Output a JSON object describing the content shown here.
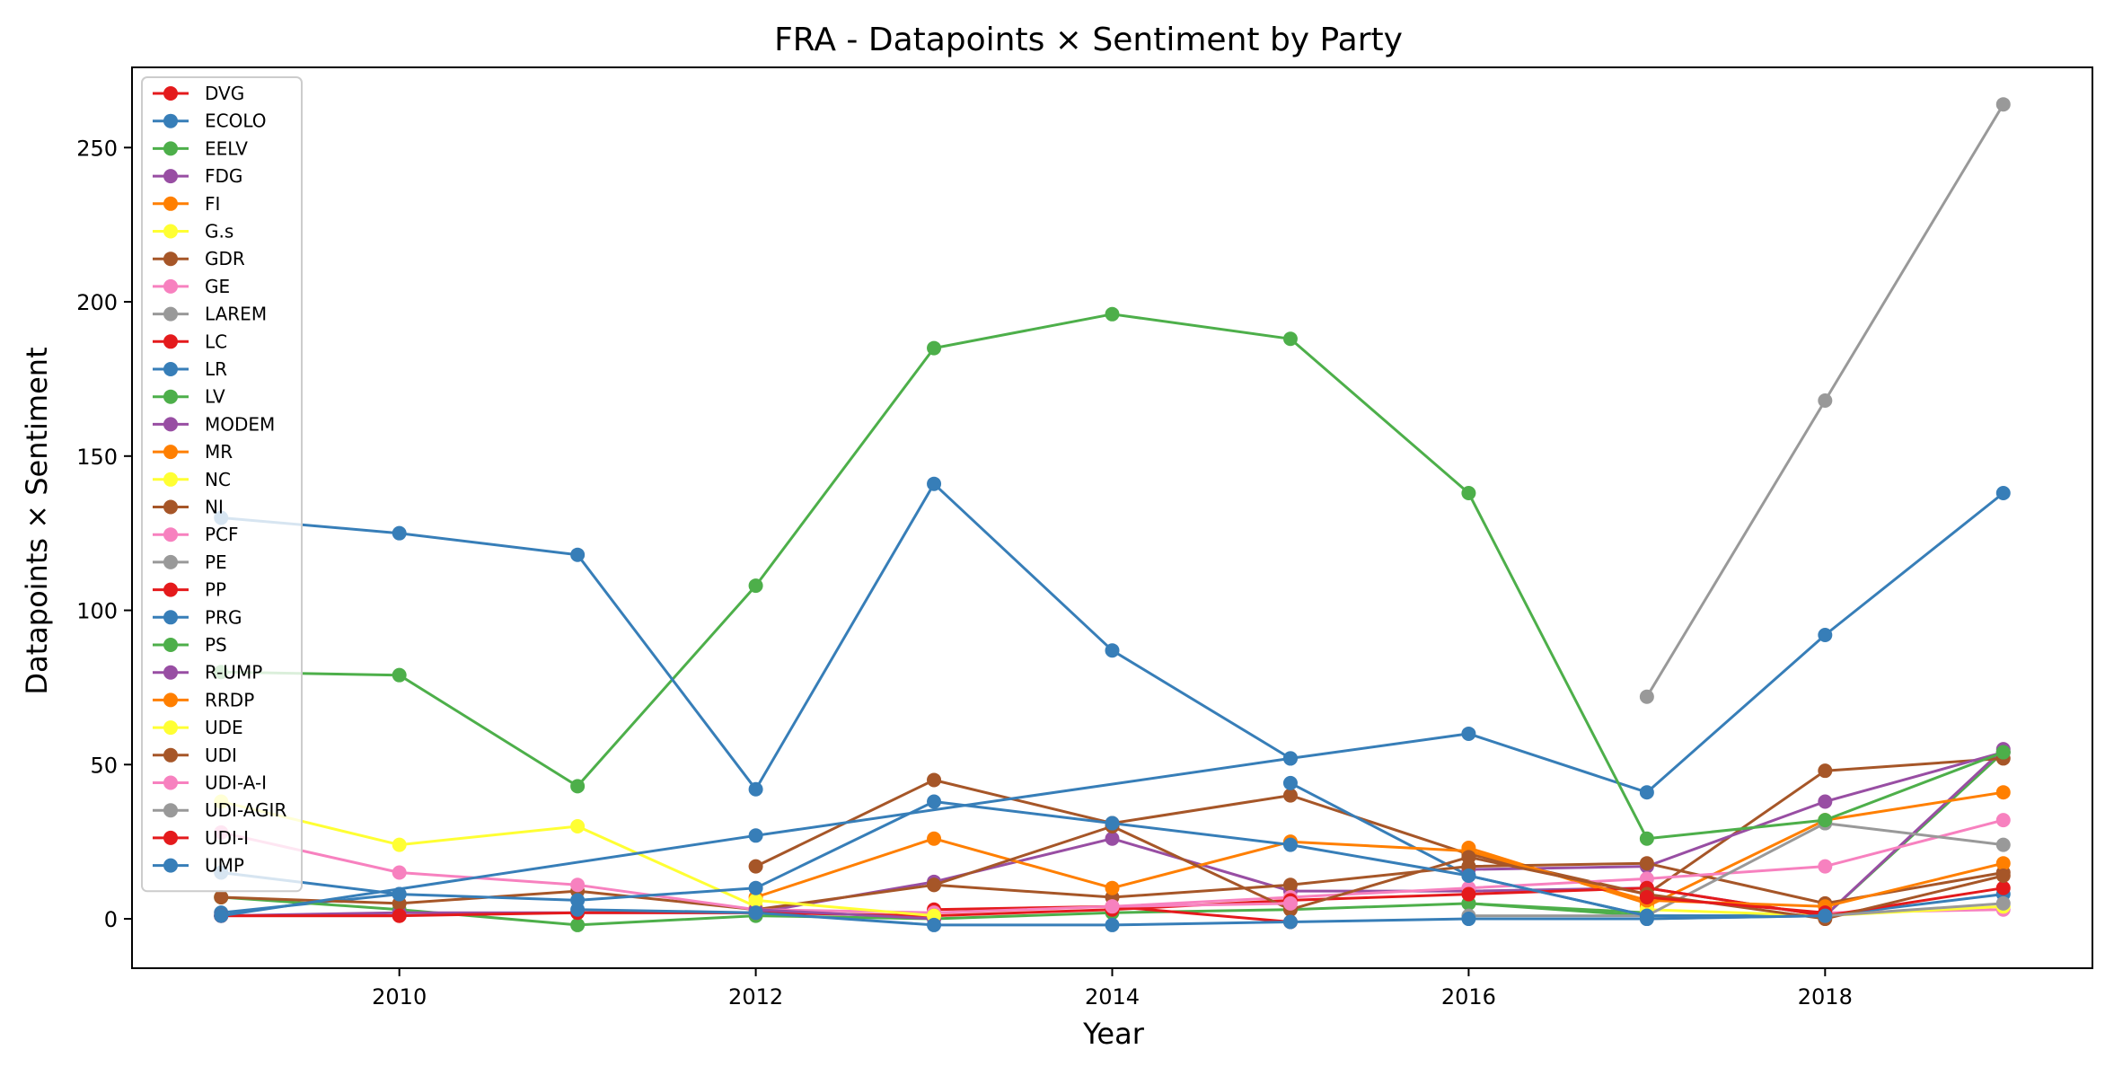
{
  "chart_data": {
    "type": "line",
    "title": "FRA - Datapoints × Sentiment by Party",
    "xlabel": "Year",
    "ylabel": "Datapoints × Sentiment",
    "xlim": [
      2008.5,
      2019.5
    ],
    "ylim": [
      -16,
      276
    ],
    "xticks": [
      2010,
      2012,
      2014,
      2016,
      2018
    ],
    "yticks": [
      0,
      50,
      100,
      150,
      200,
      250
    ],
    "grid": false,
    "legend_position": "upper-left",
    "series": [
      {
        "name": "DVG",
        "color": "#e41a1c",
        "points": [
          [
            2009,
            1
          ],
          [
            2010,
            1
          ]
        ]
      },
      {
        "name": "ECOLO",
        "color": "#377eb8",
        "points": [
          [
            2009,
            2
          ],
          [
            2010,
            8
          ]
        ]
      },
      {
        "name": "EELV",
        "color": "#4daf4a",
        "points": [
          [
            2009,
            7
          ],
          [
            2010,
            3
          ],
          [
            2011,
            -2
          ],
          [
            2012,
            1
          ],
          [
            2013,
            0
          ],
          [
            2014,
            2
          ],
          [
            2015,
            3
          ],
          [
            2016,
            5
          ],
          [
            2017,
            1
          ],
          [
            2018,
            1
          ],
          [
            2019,
            54
          ]
        ]
      },
      {
        "name": "FDG",
        "color": "#984ea3",
        "points": [
          [
            2009,
            1
          ],
          [
            2010,
            2
          ],
          [
            2011,
            2
          ],
          [
            2012,
            2
          ],
          [
            2013,
            12
          ],
          [
            2014,
            26
          ],
          [
            2015,
            9
          ],
          [
            2016,
            9
          ],
          [
            2017,
            10
          ],
          [
            2018,
            1
          ],
          [
            2019,
            55
          ]
        ]
      },
      {
        "name": "FI",
        "color": "#ff7f00",
        "points": [
          [
            2017,
            4
          ],
          [
            2018,
            32
          ],
          [
            2019,
            41
          ]
        ]
      },
      {
        "name": "G.s",
        "color": "#ffff33",
        "points": [
          [
            2009,
            38
          ],
          [
            2010,
            24
          ],
          [
            2011,
            30
          ],
          [
            2012,
            4
          ]
        ]
      },
      {
        "name": "GDR",
        "color": "#a65628",
        "points": [
          [
            2012,
            17
          ],
          [
            2013,
            45
          ],
          [
            2014,
            31
          ],
          [
            2015,
            40
          ],
          [
            2016,
            21
          ],
          [
            2017,
            8
          ],
          [
            2018,
            48
          ],
          [
            2019,
            52
          ]
        ]
      },
      {
        "name": "GE",
        "color": "#f781bf",
        "points": [
          [
            2018,
            2
          ],
          [
            2019,
            3
          ]
        ]
      },
      {
        "name": "LAREM",
        "color": "#999999",
        "points": [
          [
            2017,
            72
          ],
          [
            2018,
            168
          ],
          [
            2019,
            264
          ]
        ]
      },
      {
        "name": "LC",
        "color": "#e41a1c",
        "points": [
          [
            2013,
            3
          ],
          [
            2014,
            4
          ],
          [
            2015,
            -1
          ]
        ]
      },
      {
        "name": "LR",
        "color": "#377eb8",
        "points": [
          [
            2015,
            44
          ],
          [
            2016,
            14
          ],
          [
            2017,
            1
          ],
          [
            2018,
            1
          ],
          [
            2019,
            8
          ]
        ]
      },
      {
        "name": "LV",
        "color": "#4daf4a",
        "points": [
          [
            2016,
            5
          ],
          [
            2017,
            2
          ]
        ]
      },
      {
        "name": "MODEM",
        "color": "#984ea3",
        "points": [
          [
            2016,
            16
          ],
          [
            2017,
            17
          ],
          [
            2018,
            38
          ],
          [
            2019,
            54
          ]
        ]
      },
      {
        "name": "MR",
        "color": "#ff7f00",
        "points": [
          [
            2016,
            23
          ],
          [
            2017,
            5
          ]
        ]
      },
      {
        "name": "NC",
        "color": "#ffff33",
        "points": [
          [
            2017,
            3
          ],
          [
            2018,
            1
          ],
          [
            2019,
            4
          ]
        ]
      },
      {
        "name": "NI",
        "color": "#a65628",
        "points": [
          [
            2009,
            7
          ],
          [
            2010,
            5
          ],
          [
            2011,
            9
          ],
          [
            2012,
            3
          ],
          [
            2013,
            11
          ],
          [
            2014,
            7
          ],
          [
            2015,
            11
          ],
          [
            2016,
            17
          ],
          [
            2017,
            18
          ],
          [
            2018,
            5
          ],
          [
            2019,
            15
          ]
        ]
      },
      {
        "name": "PCF",
        "color": "#f781bf",
        "points": [
          [
            2009,
            28
          ],
          [
            2010,
            15
          ],
          [
            2011,
            11
          ],
          [
            2012,
            3
          ],
          [
            2013,
            2
          ],
          [
            2014,
            4
          ],
          [
            2015,
            7
          ],
          [
            2016,
            10
          ],
          [
            2017,
            13
          ],
          [
            2018,
            17
          ],
          [
            2019,
            32
          ]
        ]
      },
      {
        "name": "PE",
        "color": "#999999",
        "points": [
          [
            2016,
            1
          ],
          [
            2017,
            1
          ],
          [
            2018,
            31
          ],
          [
            2019,
            24
          ]
        ]
      },
      {
        "name": "PP",
        "color": "#e41a1c",
        "points": [
          [
            2009,
            1
          ],
          [
            2010,
            1
          ],
          [
            2011,
            2
          ],
          [
            2012,
            2
          ],
          [
            2013,
            1
          ],
          [
            2014,
            3
          ],
          [
            2015,
            6
          ],
          [
            2016,
            8
          ],
          [
            2017,
            10
          ],
          [
            2018,
            1
          ],
          [
            2019,
            10
          ]
        ]
      },
      {
        "name": "PRG",
        "color": "#377eb8",
        "points": [
          [
            2009,
            1
          ],
          [
            2012,
            27
          ],
          [
            2015,
            52
          ],
          [
            2016,
            60
          ],
          [
            2017,
            41
          ],
          [
            2018,
            92
          ],
          [
            2019,
            138
          ]
        ]
      },
      {
        "name": "PS",
        "color": "#4daf4a",
        "points": [
          [
            2009,
            80
          ],
          [
            2010,
            79
          ],
          [
            2011,
            43
          ],
          [
            2012,
            108
          ],
          [
            2013,
            185
          ],
          [
            2014,
            196
          ],
          [
            2015,
            188
          ],
          [
            2016,
            138
          ],
          [
            2017,
            26
          ],
          [
            2018,
            32
          ],
          [
            2019,
            54
          ]
        ]
      },
      {
        "name": "R-UMP",
        "color": "#984ea3",
        "points": [
          [
            2012,
            3
          ],
          [
            2013,
            0
          ]
        ]
      },
      {
        "name": "RRDP",
        "color": "#ff7f00",
        "points": [
          [
            2012,
            7
          ],
          [
            2013,
            26
          ],
          [
            2014,
            10
          ],
          [
            2015,
            25
          ],
          [
            2016,
            22
          ],
          [
            2017,
            6
          ],
          [
            2018,
            4
          ],
          [
            2019,
            18
          ]
        ]
      },
      {
        "name": "UDE",
        "color": "#ffff33",
        "points": [
          [
            2012,
            6
          ],
          [
            2013,
            1
          ]
        ]
      },
      {
        "name": "UDI",
        "color": "#a65628",
        "points": [
          [
            2013,
            11
          ],
          [
            2014,
            30
          ],
          [
            2015,
            3
          ],
          [
            2016,
            20
          ],
          [
            2017,
            8
          ],
          [
            2018,
            0
          ],
          [
            2019,
            14
          ]
        ]
      },
      {
        "name": "UDI-A-I",
        "color": "#f781bf",
        "points": [
          [
            2014,
            4
          ],
          [
            2015,
            5
          ]
        ]
      },
      {
        "name": "UDI-AGIR",
        "color": "#999999",
        "points": [
          [
            2017,
            0
          ],
          [
            2018,
            1
          ],
          [
            2019,
            5
          ]
        ]
      },
      {
        "name": "UDI-I",
        "color": "#e41a1c",
        "points": [
          [
            2017,
            7
          ],
          [
            2018,
            2
          ]
        ]
      },
      {
        "name": "UMP",
        "color": "#377eb8",
        "points": [
          [
            2009,
            130
          ],
          [
            2010,
            125
          ],
          [
            2011,
            118
          ],
          [
            2012,
            42
          ],
          [
            2013,
            141
          ],
          [
            2014,
            87
          ],
          [
            2015,
            52
          ]
        ]
      },
      {
        "name": "",
        "color": "#377eb8",
        "points": [
          [
            2009,
            15
          ],
          [
            2010,
            8
          ],
          [
            2011,
            6
          ],
          [
            2012,
            10
          ],
          [
            2013,
            38
          ],
          [
            2014,
            31
          ],
          [
            2015,
            24
          ],
          [
            2016,
            14
          ],
          [
            2017,
            1
          ]
        ]
      },
      {
        "name": "",
        "color": "#377eb8",
        "points": [
          [
            2011,
            3
          ],
          [
            2012,
            2
          ],
          [
            2013,
            -2
          ],
          [
            2014,
            -2
          ],
          [
            2015,
            -1
          ],
          [
            2016,
            0
          ],
          [
            2017,
            0
          ],
          [
            2018,
            1
          ]
        ]
      }
    ]
  }
}
